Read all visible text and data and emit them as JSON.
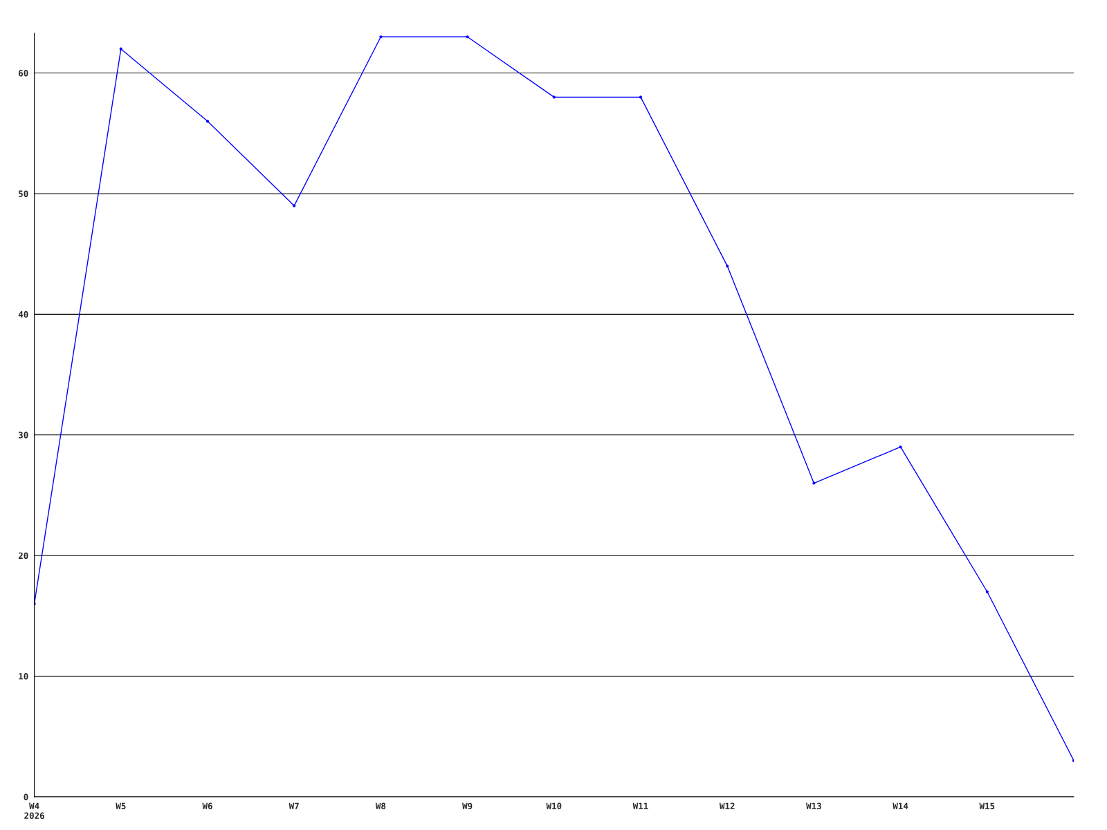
{
  "chart_data": {
    "type": "line",
    "categories": [
      "W4\n2026",
      "W5",
      "W6",
      "W7",
      "W8",
      "W9",
      "W10",
      "W11",
      "W12",
      "W13",
      "W14",
      "W15",
      null
    ],
    "series": [
      {
        "color": "#0000ff",
        "values": [
          16,
          62,
          56,
          49,
          63,
          63,
          58,
          58,
          44,
          26,
          29,
          17,
          3
        ]
      }
    ],
    "ylim": [
      0,
      63.3
    ],
    "yticks": [
      0,
      10,
      20,
      30,
      40,
      50,
      60
    ],
    "grid": "y",
    "marker": "circle",
    "line_style": "solid",
    "legend": false
  }
}
